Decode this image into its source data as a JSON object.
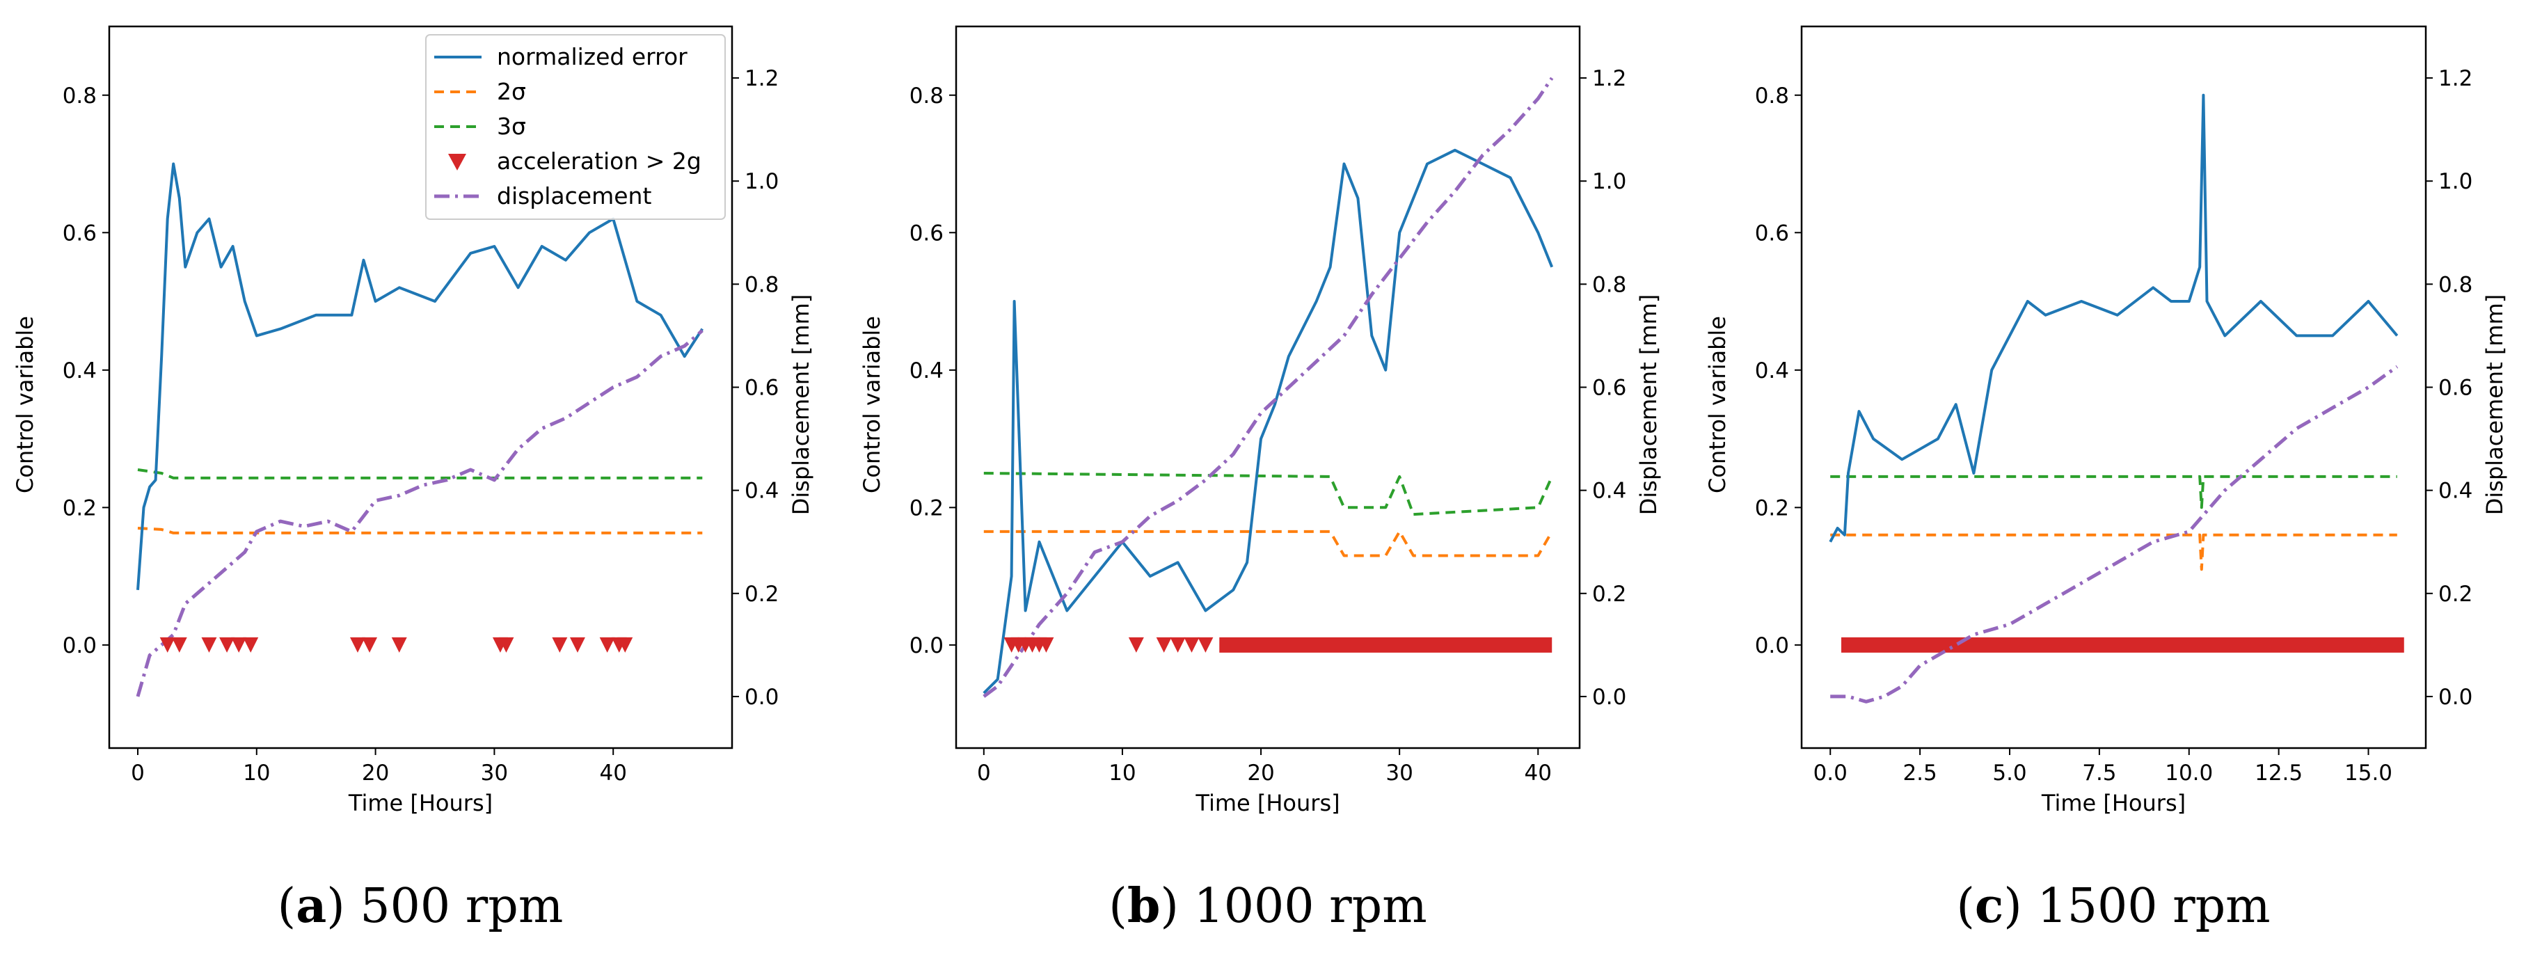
{
  "colors": {
    "normalized_error": "#1f77b4",
    "two_sigma": "#ff7f0e",
    "three_sigma": "#2ca02c",
    "acceleration": "#d62728",
    "displacement": "#9467bd"
  },
  "legend": {
    "normalized_error": "normalized error",
    "two_sigma": "2σ",
    "three_sigma": "3σ",
    "acceleration": "acceleration > 2g",
    "displacement": "displacement"
  },
  "chart_data": [
    {
      "type": "line",
      "title": "",
      "caption_letter": "(a)",
      "caption_text": " 500 rpm",
      "xlabel": "Time [Hours]",
      "ylabel": "Control variable",
      "y2label": "Displacement [mm]",
      "xlim": [
        -2.4,
        50
      ],
      "ylim": [
        -0.15,
        0.9
      ],
      "y2lim": [
        -0.1,
        1.3
      ],
      "xticks": [
        0,
        10,
        20,
        30,
        40
      ],
      "xtick_labels": [
        "0",
        "10",
        "20",
        "30",
        "40"
      ],
      "yticks": [
        0.0,
        0.2,
        0.4,
        0.6,
        0.8
      ],
      "ytick_labels": [
        "0.0",
        "0.2",
        "0.4",
        "0.6",
        "0.8"
      ],
      "y2ticks": [
        0.0,
        0.2,
        0.4,
        0.6,
        0.8,
        1.0,
        1.2
      ],
      "y2tick_labels": [
        "0.0",
        "0.2",
        "0.4",
        "0.6",
        "0.8",
        "1.0",
        "1.2"
      ],
      "legend_position": "upper right",
      "series": [
        {
          "name": "normalized error",
          "axis": "left",
          "x": [
            0,
            0.5,
            1,
            1.5,
            2,
            2.5,
            3,
            3.5,
            4,
            5,
            6,
            7,
            8,
            9,
            10,
            12,
            15,
            18,
            19,
            20,
            22,
            25,
            28,
            30,
            32,
            34,
            36,
            38,
            40,
            42,
            44,
            46,
            47.5
          ],
          "y": [
            0.08,
            0.2,
            0.23,
            0.24,
            0.42,
            0.62,
            0.7,
            0.65,
            0.55,
            0.6,
            0.62,
            0.55,
            0.58,
            0.5,
            0.45,
            0.46,
            0.48,
            0.48,
            0.56,
            0.5,
            0.52,
            0.5,
            0.57,
            0.58,
            0.52,
            0.58,
            0.56,
            0.6,
            0.62,
            0.5,
            0.48,
            0.42,
            0.46
          ]
        },
        {
          "name": "2σ",
          "axis": "left",
          "x": [
            0,
            2,
            3,
            47.5
          ],
          "y": [
            0.17,
            0.168,
            0.163,
            0.163
          ]
        },
        {
          "name": "3σ",
          "axis": "left",
          "x": [
            0,
            2,
            3,
            47.5
          ],
          "y": [
            0.255,
            0.25,
            0.243,
            0.243
          ]
        },
        {
          "name": "displacement",
          "axis": "right",
          "x": [
            0,
            1,
            2,
            3,
            4,
            5,
            7,
            9,
            10,
            12,
            14,
            16,
            18,
            20,
            22,
            24,
            26,
            28,
            30,
            32,
            34,
            36,
            38,
            40,
            42,
            44,
            46,
            47.5
          ],
          "y": [
            0.0,
            0.08,
            0.1,
            0.12,
            0.18,
            0.2,
            0.24,
            0.28,
            0.32,
            0.34,
            0.33,
            0.34,
            0.32,
            0.38,
            0.39,
            0.41,
            0.42,
            0.44,
            0.42,
            0.48,
            0.52,
            0.54,
            0.57,
            0.6,
            0.62,
            0.66,
            0.68,
            0.71
          ]
        }
      ],
      "acceleration_events_x": [
        2.5,
        3.5,
        6,
        7.5,
        8.5,
        9.5,
        18.5,
        19.5,
        22,
        30.5,
        31,
        35.5,
        37,
        39.5,
        40.5,
        41
      ]
    },
    {
      "type": "line",
      "title": "",
      "caption_letter": "(b)",
      "caption_text": " 1000 rpm",
      "xlabel": "Time [Hours]",
      "ylabel": "Control variable",
      "y2label": "Displacement [mm]",
      "xlim": [
        -2,
        43
      ],
      "ylim": [
        -0.15,
        0.9
      ],
      "y2lim": [
        -0.1,
        1.3
      ],
      "xticks": [
        0,
        10,
        20,
        30,
        40
      ],
      "xtick_labels": [
        "0",
        "10",
        "20",
        "30",
        "40"
      ],
      "yticks": [
        0.0,
        0.2,
        0.4,
        0.6,
        0.8
      ],
      "ytick_labels": [
        "0.0",
        "0.2",
        "0.4",
        "0.6",
        "0.8"
      ],
      "y2ticks": [
        0.0,
        0.2,
        0.4,
        0.6,
        0.8,
        1.0,
        1.2
      ],
      "y2tick_labels": [
        "0.0",
        "0.2",
        "0.4",
        "0.6",
        "0.8",
        "1.0",
        "1.2"
      ],
      "series": [
        {
          "name": "normalized error",
          "axis": "left",
          "x": [
            0,
            1,
            2,
            2.2,
            3,
            4,
            5,
            6,
            8,
            10,
            12,
            14,
            16,
            18,
            19,
            20,
            21,
            22,
            24,
            25,
            26,
            27,
            28,
            29,
            30,
            31,
            32,
            34,
            36,
            38,
            40,
            41
          ],
          "y": [
            -0.07,
            -0.05,
            0.1,
            0.5,
            0.05,
            0.15,
            0.1,
            0.05,
            0.1,
            0.15,
            0.1,
            0.12,
            0.05,
            0.08,
            0.12,
            0.3,
            0.35,
            0.42,
            0.5,
            0.55,
            0.7,
            0.65,
            0.45,
            0.4,
            0.6,
            0.65,
            0.7,
            0.72,
            0.7,
            0.68,
            0.6,
            0.55
          ]
        },
        {
          "name": "2σ",
          "axis": "left",
          "x": [
            0,
            25,
            26,
            29,
            30,
            31,
            40,
            41
          ],
          "y": [
            0.165,
            0.165,
            0.13,
            0.13,
            0.165,
            0.13,
            0.13,
            0.165
          ]
        },
        {
          "name": "3σ",
          "axis": "left",
          "x": [
            0,
            25,
            26,
            29,
            30,
            31,
            40,
            41
          ],
          "y": [
            0.25,
            0.245,
            0.2,
            0.2,
            0.245,
            0.19,
            0.2,
            0.245
          ]
        },
        {
          "name": "displacement",
          "axis": "right",
          "x": [
            0,
            1,
            2,
            4,
            6,
            8,
            10,
            12,
            14,
            16,
            18,
            20,
            22,
            24,
            26,
            28,
            30,
            32,
            34,
            36,
            38,
            40,
            41
          ],
          "y": [
            0.0,
            0.02,
            0.06,
            0.14,
            0.2,
            0.28,
            0.3,
            0.35,
            0.38,
            0.42,
            0.47,
            0.55,
            0.6,
            0.65,
            0.7,
            0.78,
            0.85,
            0.92,
            0.98,
            1.05,
            1.1,
            1.16,
            1.2
          ]
        }
      ],
      "acceleration_events_x": [
        2,
        2.5,
        3,
        3.5,
        4,
        4.5,
        11,
        13,
        14,
        15,
        16
      ],
      "acceleration_band_x": [
        17.5,
        40.5
      ]
    },
    {
      "type": "line",
      "title": "",
      "caption_letter": "(c)",
      "caption_text": " 1500 rpm",
      "xlabel": "Time [Hours]",
      "ylabel": "Control variable",
      "y2label": "Displacement [mm]",
      "xlim": [
        -0.8,
        16.6
      ],
      "ylim": [
        -0.15,
        0.9
      ],
      "y2lim": [
        -0.1,
        1.3
      ],
      "xticks": [
        0,
        2.5,
        5,
        7.5,
        10,
        12.5,
        15
      ],
      "xtick_labels": [
        "0.0",
        "2.5",
        "5.0",
        "7.5",
        "10.0",
        "12.5",
        "15.0"
      ],
      "yticks": [
        0.0,
        0.2,
        0.4,
        0.6,
        0.8
      ],
      "ytick_labels": [
        "0.0",
        "0.2",
        "0.4",
        "0.6",
        "0.8"
      ],
      "y2ticks": [
        0.0,
        0.2,
        0.4,
        0.6,
        0.8,
        1.0,
        1.2
      ],
      "y2tick_labels": [
        "0.0",
        "0.2",
        "0.4",
        "0.6",
        "0.8",
        "1.0",
        "1.2"
      ],
      "series": [
        {
          "name": "normalized error",
          "axis": "left",
          "x": [
            0,
            0.2,
            0.4,
            0.5,
            0.8,
            1.2,
            2,
            3,
            3.5,
            4,
            4.5,
            5,
            5.5,
            6,
            7,
            8,
            9,
            9.5,
            10,
            10.3,
            10.4,
            10.5,
            11,
            12,
            13,
            14,
            15,
            15.8
          ],
          "y": [
            0.15,
            0.17,
            0.16,
            0.25,
            0.34,
            0.3,
            0.27,
            0.3,
            0.35,
            0.25,
            0.4,
            0.45,
            0.5,
            0.48,
            0.5,
            0.48,
            0.52,
            0.5,
            0.5,
            0.55,
            0.8,
            0.5,
            0.45,
            0.5,
            0.45,
            0.45,
            0.5,
            0.45
          ]
        },
        {
          "name": "2σ",
          "axis": "left",
          "x": [
            0,
            10.3,
            10.35,
            10.4,
            10.5,
            15.8
          ],
          "y": [
            0.16,
            0.16,
            0.11,
            0.16,
            0.16,
            0.16
          ]
        },
        {
          "name": "3σ",
          "axis": "left",
          "x": [
            0,
            10.3,
            10.35,
            10.4,
            10.5,
            15.8
          ],
          "y": [
            0.245,
            0.245,
            0.2,
            0.245,
            0.245,
            0.245
          ]
        },
        {
          "name": "displacement",
          "axis": "right",
          "x": [
            0,
            0.5,
            1,
            1.5,
            2,
            2.5,
            3,
            4,
            5,
            6,
            7,
            8,
            9,
            10,
            10.5,
            11,
            12,
            13,
            14,
            15,
            15.8
          ],
          "y": [
            0.0,
            0.0,
            -0.01,
            0.0,
            0.02,
            0.06,
            0.08,
            0.12,
            0.14,
            0.18,
            0.22,
            0.26,
            0.3,
            0.32,
            0.36,
            0.4,
            0.46,
            0.52,
            0.56,
            0.6,
            0.64
          ]
        }
      ],
      "acceleration_events_x": [],
      "acceleration_band_x": [
        0.5,
        15.8
      ]
    }
  ]
}
